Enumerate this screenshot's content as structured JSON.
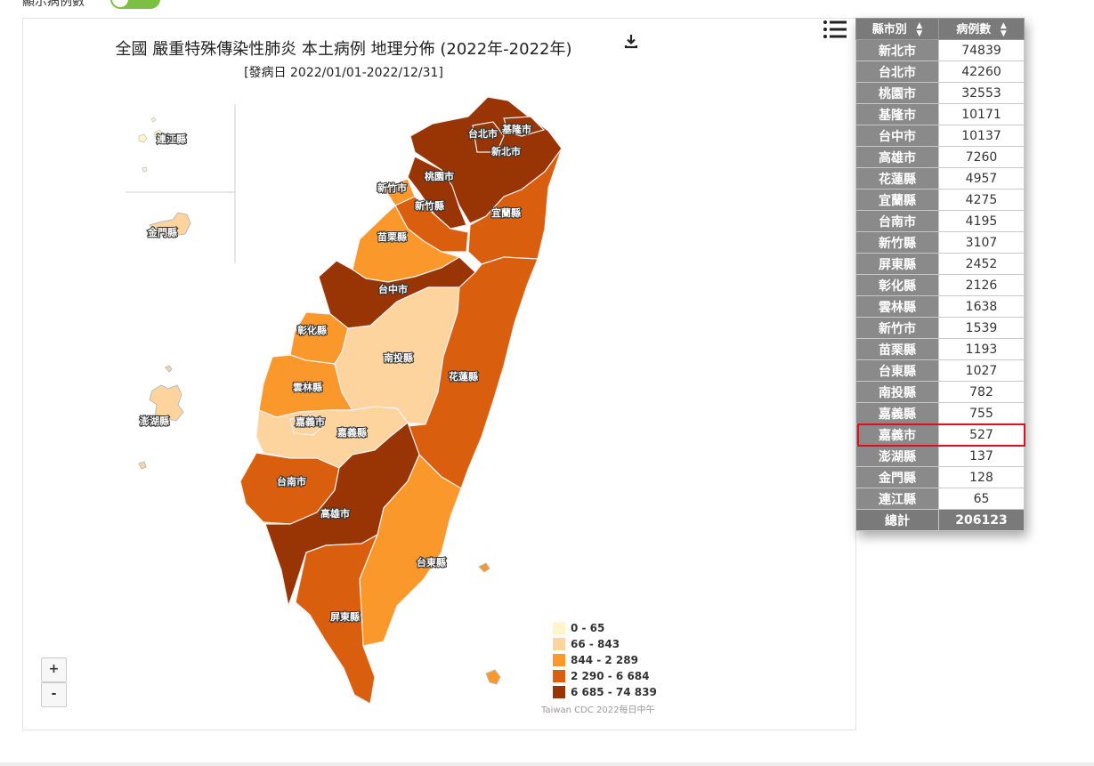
{
  "header": {
    "toggle_label": "顯示病例數",
    "toggle_state": "on"
  },
  "map": {
    "title": "全國 嚴重特殊傳染性肺炎 本土病例 地理分佈 (2022年-2022年)",
    "subtitle": "[發病日 2022/01/01-2022/12/31]",
    "credit": "Taiwan CDC 2022每日中午",
    "zoom_in": "+",
    "zoom_out": "-",
    "legend": [
      {
        "label": "0 - 65",
        "color": "#fff5c8"
      },
      {
        "label": "66 - 843",
        "color": "#fdd49e"
      },
      {
        "label": "844 - 2 289",
        "color": "#fb982c"
      },
      {
        "label": "2 290 - 6 684",
        "color": "#d95f0e"
      },
      {
        "label": "6 685 - 74 839",
        "color": "#993404"
      }
    ],
    "labels": {
      "taipei": "台北市",
      "keelung": "基隆市",
      "new_taipei": "新北市",
      "taoyuan": "桃園市",
      "hsinchu_city": "新竹市",
      "hsinchu_county": "新竹縣",
      "yilan": "宜蘭縣",
      "miaoli": "苗栗縣",
      "taichung": "台中市",
      "changhua": "彰化縣",
      "nantou": "南投縣",
      "hualien": "花蓮縣",
      "yunlin": "雲林縣",
      "chiayi_city": "嘉義市",
      "chiayi_county": "嘉義縣",
      "tainan": "台南市",
      "kaohsiung": "高雄市",
      "taitung": "台東縣",
      "pingtung": "屏東縣",
      "penghu": "澎湖縣",
      "kinmen": "金門縣",
      "lienchiang": "連江縣"
    }
  },
  "table": {
    "col_city": "縣市別",
    "col_cases": "病例數",
    "rows": [
      {
        "city": "新北市",
        "cases": "74839"
      },
      {
        "city": "台北市",
        "cases": "42260"
      },
      {
        "city": "桃園市",
        "cases": "32553"
      },
      {
        "city": "基隆市",
        "cases": "10171"
      },
      {
        "city": "台中市",
        "cases": "10137"
      },
      {
        "city": "高雄市",
        "cases": "7260"
      },
      {
        "city": "花蓮縣",
        "cases": "4957"
      },
      {
        "city": "宜蘭縣",
        "cases": "4275"
      },
      {
        "city": "台南市",
        "cases": "4195"
      },
      {
        "city": "新竹縣",
        "cases": "3107"
      },
      {
        "city": "屏東縣",
        "cases": "2452"
      },
      {
        "city": "彰化縣",
        "cases": "2126"
      },
      {
        "city": "雲林縣",
        "cases": "1638"
      },
      {
        "city": "新竹市",
        "cases": "1539"
      },
      {
        "city": "苗栗縣",
        "cases": "1193"
      },
      {
        "city": "台東縣",
        "cases": "1027"
      },
      {
        "city": "南投縣",
        "cases": "782"
      },
      {
        "city": "嘉義縣",
        "cases": "755"
      },
      {
        "city": "嘉義市",
        "cases": "527"
      },
      {
        "city": "澎湖縣",
        "cases": "137"
      },
      {
        "city": "金門縣",
        "cases": "128"
      },
      {
        "city": "連江縣",
        "cases": "65"
      }
    ],
    "total_label": "總計",
    "total_value": "206123",
    "highlighted_city": "嘉義市"
  }
}
